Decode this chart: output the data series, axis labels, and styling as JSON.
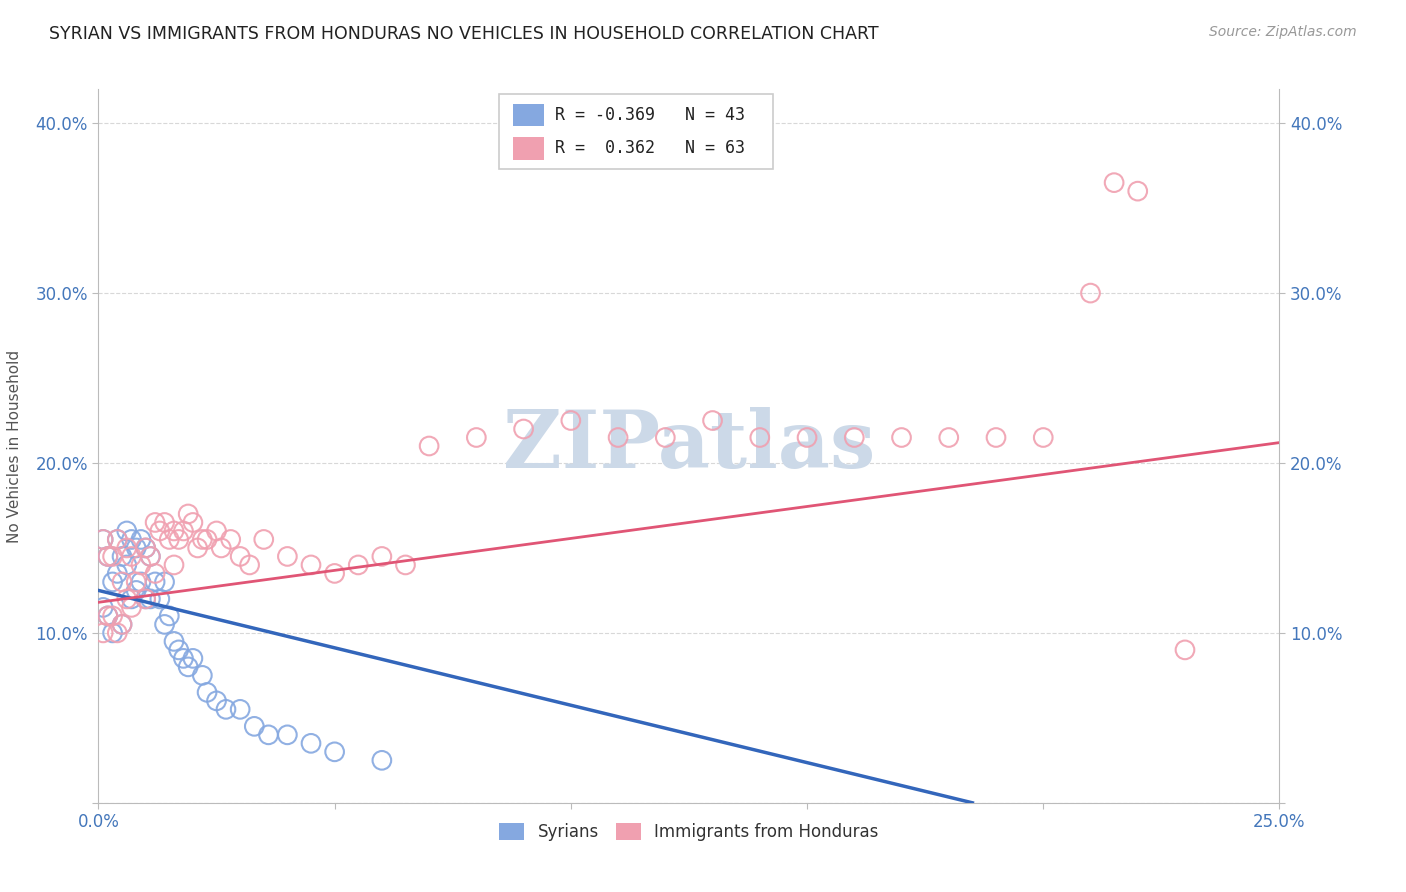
{
  "title": "SYRIAN VS IMMIGRANTS FROM HONDURAS NO VEHICLES IN HOUSEHOLD CORRELATION CHART",
  "source": "Source: ZipAtlas.com",
  "ylabel": "No Vehicles in Household",
  "xlim": [
    0.0,
    0.25
  ],
  "ylim": [
    0.0,
    0.42
  ],
  "xticks": [
    0.0,
    0.05,
    0.1,
    0.15,
    0.2,
    0.25
  ],
  "yticks": [
    0.0,
    0.1,
    0.2,
    0.3,
    0.4
  ],
  "background_color": "#ffffff",
  "grid_color": "#d8d8d8",
  "axis_color": "#bbbbbb",
  "tick_color": "#4477bb",
  "title_color": "#222222",
  "watermark_text": "ZIPatlas",
  "watermark_color": "#ccd9e8",
  "legend_R1": "-0.369",
  "legend_N1": "43",
  "legend_R2": "0.362",
  "legend_N2": "63",
  "series1_color": "#85a8e0",
  "series2_color": "#f0a0b0",
  "series1_label": "Syrians",
  "series2_label": "Immigrants from Honduras",
  "series1_line_color": "#3366bb",
  "series2_line_color": "#e05575",
  "syrians_x": [
    0.001,
    0.001,
    0.002,
    0.002,
    0.003,
    0.003,
    0.004,
    0.004,
    0.005,
    0.005,
    0.006,
    0.006,
    0.007,
    0.007,
    0.008,
    0.008,
    0.009,
    0.009,
    0.01,
    0.01,
    0.011,
    0.011,
    0.012,
    0.013,
    0.014,
    0.014,
    0.015,
    0.016,
    0.017,
    0.018,
    0.019,
    0.02,
    0.022,
    0.023,
    0.025,
    0.027,
    0.03,
    0.033,
    0.036,
    0.04,
    0.045,
    0.05,
    0.06
  ],
  "syrians_y": [
    0.155,
    0.115,
    0.145,
    0.11,
    0.13,
    0.1,
    0.155,
    0.135,
    0.145,
    0.105,
    0.16,
    0.14,
    0.155,
    0.12,
    0.15,
    0.125,
    0.155,
    0.13,
    0.15,
    0.12,
    0.145,
    0.12,
    0.13,
    0.12,
    0.13,
    0.105,
    0.11,
    0.095,
    0.09,
    0.085,
    0.08,
    0.085,
    0.075,
    0.065,
    0.06,
    0.055,
    0.055,
    0.045,
    0.04,
    0.04,
    0.035,
    0.03,
    0.025
  ],
  "honduras_x": [
    0.001,
    0.001,
    0.002,
    0.002,
    0.003,
    0.003,
    0.004,
    0.004,
    0.005,
    0.005,
    0.006,
    0.006,
    0.007,
    0.007,
    0.008,
    0.009,
    0.01,
    0.01,
    0.011,
    0.012,
    0.012,
    0.013,
    0.014,
    0.015,
    0.016,
    0.016,
    0.017,
    0.018,
    0.019,
    0.02,
    0.021,
    0.022,
    0.023,
    0.025,
    0.026,
    0.028,
    0.03,
    0.032,
    0.035,
    0.04,
    0.045,
    0.05,
    0.055,
    0.06,
    0.065,
    0.07,
    0.08,
    0.09,
    0.1,
    0.11,
    0.12,
    0.13,
    0.14,
    0.15,
    0.16,
    0.17,
    0.18,
    0.19,
    0.2,
    0.21,
    0.215,
    0.22,
    0.23
  ],
  "honduras_y": [
    0.155,
    0.1,
    0.145,
    0.11,
    0.145,
    0.11,
    0.155,
    0.1,
    0.13,
    0.105,
    0.15,
    0.12,
    0.145,
    0.115,
    0.13,
    0.14,
    0.15,
    0.12,
    0.145,
    0.165,
    0.135,
    0.16,
    0.165,
    0.155,
    0.16,
    0.14,
    0.155,
    0.16,
    0.17,
    0.165,
    0.15,
    0.155,
    0.155,
    0.16,
    0.15,
    0.155,
    0.145,
    0.14,
    0.155,
    0.145,
    0.14,
    0.135,
    0.14,
    0.145,
    0.14,
    0.21,
    0.215,
    0.22,
    0.225,
    0.215,
    0.215,
    0.225,
    0.215,
    0.215,
    0.215,
    0.215,
    0.215,
    0.215,
    0.215,
    0.3,
    0.365,
    0.36,
    0.09
  ]
}
